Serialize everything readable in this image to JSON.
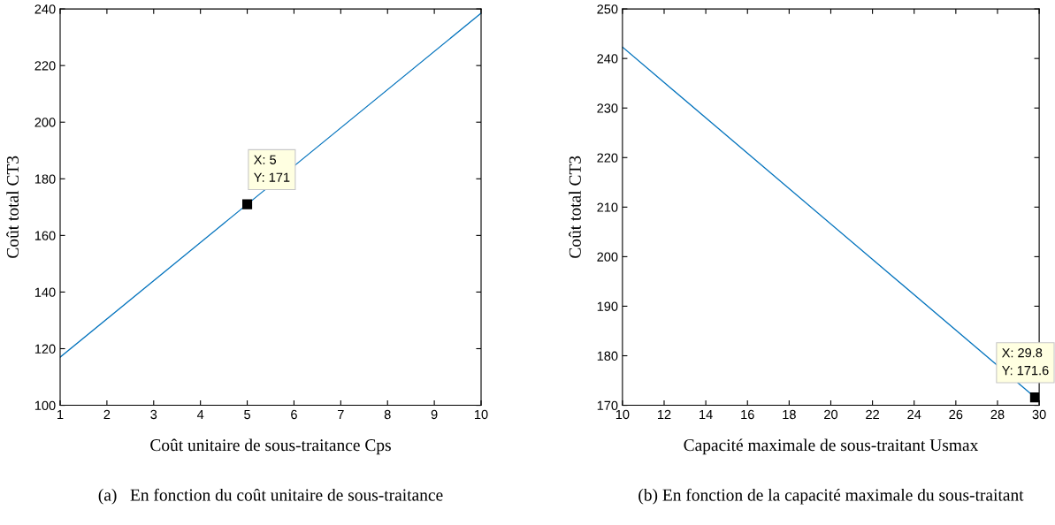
{
  "chart_data": [
    {
      "type": "line",
      "xlabel": "Coût unitaire de sous-traitance Cps",
      "ylabel": "Coût total CT3",
      "x": [
        1,
        5,
        10
      ],
      "series": [
        {
          "color": "#0072bd",
          "values": [
            117,
            171,
            238.5
          ]
        }
      ],
      "xlim": [
        1,
        10
      ],
      "xticks": [
        1,
        2,
        3,
        4,
        5,
        6,
        7,
        8,
        9,
        10
      ],
      "ylim": [
        100,
        240
      ],
      "yticks": [
        100,
        120,
        140,
        160,
        180,
        200,
        220,
        240
      ],
      "grid": false,
      "legend": false,
      "annotations": [
        {
          "text": "X: 5\nY: 171",
          "x": 5,
          "y": 171
        },
        "(a)   En fonction du coût unitaire de sous-traitance"
      ]
    },
    {
      "type": "line",
      "xlabel": "Capacité maximale de sous-traitant Usmax",
      "ylabel": "Coût total CT3",
      "x": [
        10,
        29.8
      ],
      "series": [
        {
          "color": "#0072bd",
          "values": [
            242.3,
            171.6
          ]
        }
      ],
      "xlim": [
        10,
        30
      ],
      "xticks": [
        10,
        12,
        14,
        16,
        18,
        20,
        22,
        24,
        26,
        28,
        30
      ],
      "ylim": [
        170,
        250
      ],
      "yticks": [
        170,
        180,
        190,
        200,
        210,
        220,
        230,
        240,
        250
      ],
      "grid": false,
      "legend": false,
      "annotations": [
        {
          "text": "X: 29.8\nY: 171.6",
          "x": 29.8,
          "y": 171.6
        },
        "(b) En fonction de la capacité maximale du sous-traitant"
      ]
    }
  ]
}
